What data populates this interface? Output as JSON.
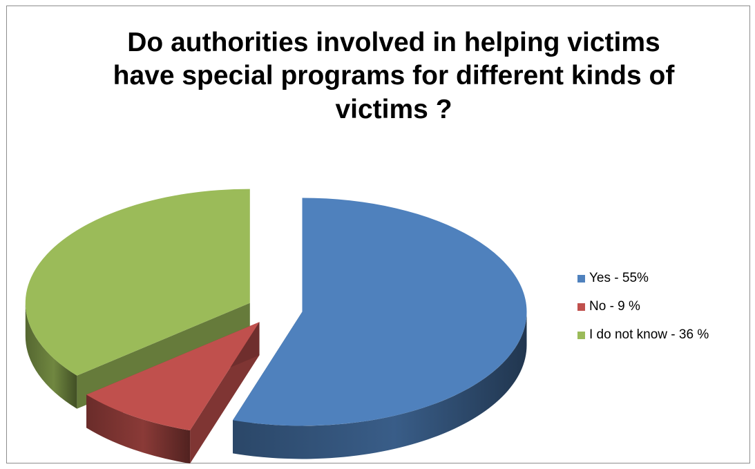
{
  "chart_data": {
    "type": "pie",
    "style": "3d-exploded",
    "title": "Do authorities involved in helping victims have special programs for different kinds of victims ?",
    "title_lines": [
      "Do authorities involved in helping victims",
      "have special programs for different kinds of",
      "victims ?"
    ],
    "legend_position": "right",
    "slices": [
      {
        "label": "Yes - 55%",
        "value": 55,
        "color": "#4f81bd"
      },
      {
        "label": "No - 9 %",
        "value": 9,
        "color": "#c0504d"
      },
      {
        "label": "I do not know - 36 %",
        "value": 36,
        "color": "#9bbb59"
      }
    ]
  }
}
